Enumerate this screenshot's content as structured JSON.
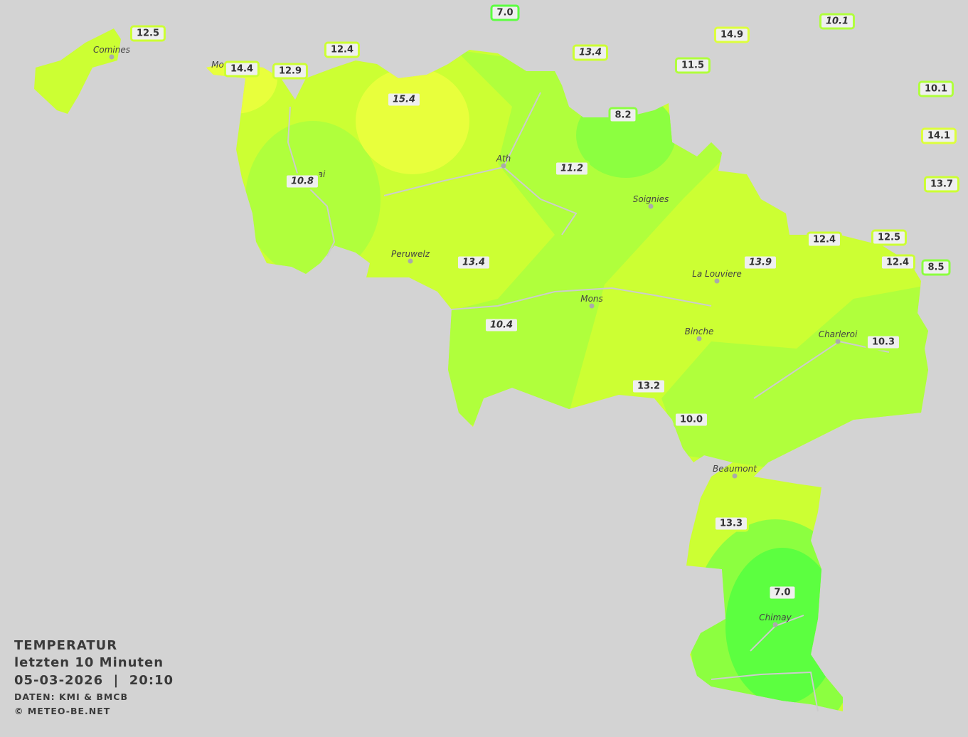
{
  "legend": {
    "title": "TEMPERATUR",
    "subtitle": "letzten 10 Minuten",
    "datetime": "05-03-2026  |  20:10",
    "source": "DATEN: KMI & BMCB",
    "copyright": "© METEO-BE.NET"
  },
  "colors": {
    "background": "#d3d3d3",
    "warm_yellow": "#e8ff3c",
    "yellow_green": "#ccff33",
    "light_green": "#b0ff3c",
    "green": "#8cff40",
    "deep_green": "#5cff40"
  },
  "cities": [
    "Comines",
    "Mo",
    "ai",
    "Ath",
    "Soignies",
    "Peruwelz",
    "Mons",
    "La Louviere",
    "Binche",
    "Charleroi",
    "Beaumont",
    "Chimay"
  ],
  "stations": [
    {
      "value": "12.5",
      "italic": false,
      "color": "#ccff33"
    },
    {
      "value": "7.0",
      "italic": false,
      "color": "#5cff40"
    },
    {
      "value": "10.1",
      "italic": true,
      "color": "#b0ff3c"
    },
    {
      "value": "14.9",
      "italic": false,
      "color": "#ddff3c"
    },
    {
      "value": "12.4",
      "italic": false,
      "color": "#ccff33"
    },
    {
      "value": "13.4",
      "italic": true,
      "color": "#ccff33"
    },
    {
      "value": "11.5",
      "italic": false,
      "color": "#b0ff3c"
    },
    {
      "value": "14.4",
      "italic": false,
      "color": "#ccff33"
    },
    {
      "value": "12.9",
      "italic": false,
      "color": "#ccff33"
    },
    {
      "value": "10.1",
      "italic": false,
      "color": "#b0ff3c"
    },
    {
      "value": "15.4",
      "italic": true,
      "color": "#e8ff3c"
    },
    {
      "value": "8.2",
      "italic": false,
      "color": "#8cff40"
    },
    {
      "value": "14.1",
      "italic": false,
      "color": "#ddff3c"
    },
    {
      "value": "11.2",
      "italic": true,
      "color": "#b0ff3c"
    },
    {
      "value": "10.8",
      "italic": true,
      "color": "#b0ff3c"
    },
    {
      "value": "13.7",
      "italic": false,
      "color": "#ccff33"
    },
    {
      "value": "12.4",
      "italic": false,
      "color": "#ccff33"
    },
    {
      "value": "12.5",
      "italic": false,
      "color": "#ccff33"
    },
    {
      "value": "12.4",
      "italic": false,
      "color": "#ccff33"
    },
    {
      "value": "8.5",
      "italic": false,
      "color": "#8cff40"
    },
    {
      "value": "13.9",
      "italic": true,
      "color": "#ccff33"
    },
    {
      "value": "13.4",
      "italic": true,
      "color": "#ccff33"
    },
    {
      "value": "10.4",
      "italic": true,
      "color": "#b0ff3c"
    },
    {
      "value": "10.3",
      "italic": false,
      "color": "#b0ff3c"
    },
    {
      "value": "13.2",
      "italic": false,
      "color": "#ccff33"
    },
    {
      "value": "10.0",
      "italic": false,
      "color": "#b0ff3c"
    },
    {
      "value": "13.3",
      "italic": false,
      "color": "#ccff33"
    },
    {
      "value": "7.0",
      "italic": false,
      "color": "#5cff40"
    }
  ]
}
